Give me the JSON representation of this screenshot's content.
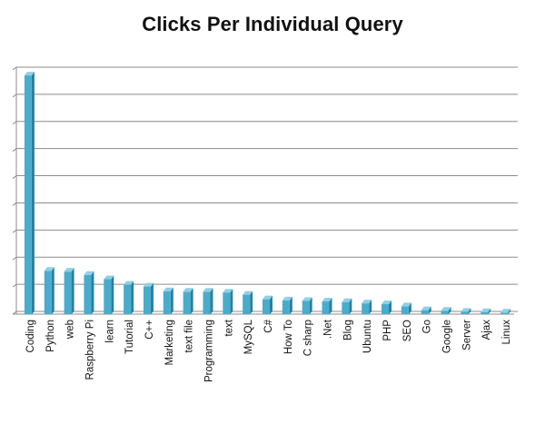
{
  "chart_data": {
    "type": "bar",
    "title": "Clicks Per Individual Query",
    "xlabel": "",
    "ylabel": "",
    "ylim": [
      0,
      900
    ],
    "y_tick_labels_shown": false,
    "grid": true,
    "legend": "none",
    "categories": [
      "Coding",
      "Python",
      "web",
      "Raspberry Pi",
      "learn",
      "Tutorial",
      "C++",
      "Marketing",
      "text file",
      "Programming",
      "text",
      "MySQL",
      "C#",
      "How To",
      "C sharp",
      ".Net",
      "Blog",
      "Ubuntu",
      "PHP",
      "SEO",
      "Go",
      "Google",
      "Server",
      "Ajax",
      "Linux"
    ],
    "values": [
      883,
      163,
      160,
      148,
      132,
      112,
      105,
      88,
      86,
      86,
      83,
      75,
      58,
      54,
      52,
      50,
      48,
      43,
      40,
      32,
      18,
      16,
      12,
      11,
      9
    ],
    "colors": {
      "bar_front": "#4aaccc",
      "bar_top": "#8fd0e6",
      "bar_side": "#2c7f9c",
      "grid": "#8c8c8c",
      "axis": "#8c8c8c"
    }
  }
}
